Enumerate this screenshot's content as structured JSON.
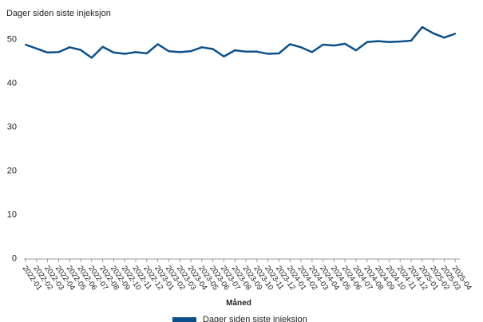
{
  "chart_data": {
    "type": "line",
    "title": "Dager siden siste injeksjon",
    "xlabel": "Måned",
    "ylabel": "",
    "ylim": [
      0,
      50
    ],
    "yticks": [
      0,
      10,
      20,
      30,
      40,
      50
    ],
    "grid": false,
    "legend_position": "bottom-center",
    "color": "#0b4f8a",
    "categories": [
      "2022-01",
      "2022-02",
      "2022-03",
      "2022-04",
      "2022-05",
      "2022-06",
      "2022-07",
      "2022-08",
      "2022-09",
      "2022-10",
      "2022-11",
      "2022-12",
      "2023-01",
      "2023-02",
      "2023-03",
      "2023-04",
      "2023-05",
      "2023-06",
      "2023-07",
      "2023-08",
      "2023-09",
      "2023-10",
      "2023-11",
      "2023-12",
      "2024-01",
      "2024-02",
      "2024-03",
      "2024-04",
      "2024-05",
      "2024-06",
      "2024-07",
      "2024-08",
      "2024-09",
      "2024-10",
      "2024-11",
      "2024-12",
      "2025-01",
      "2025-02",
      "2025-03",
      "2025-04"
    ],
    "series": [
      {
        "name": "Dager siden siste injeksjon",
        "values": [
          48.6,
          47.7,
          46.8,
          46.9,
          48.0,
          47.4,
          45.6,
          48.1,
          46.8,
          46.5,
          46.9,
          46.6,
          48.7,
          47.1,
          46.9,
          47.1,
          48.0,
          47.6,
          45.9,
          47.3,
          47.0,
          47.0,
          46.5,
          46.6,
          48.7,
          48.0,
          46.9,
          48.6,
          48.4,
          48.8,
          47.3,
          49.2,
          49.4,
          49.2,
          49.3,
          49.5,
          52.6,
          51.2,
          50.2,
          51.1
        ]
      }
    ]
  }
}
